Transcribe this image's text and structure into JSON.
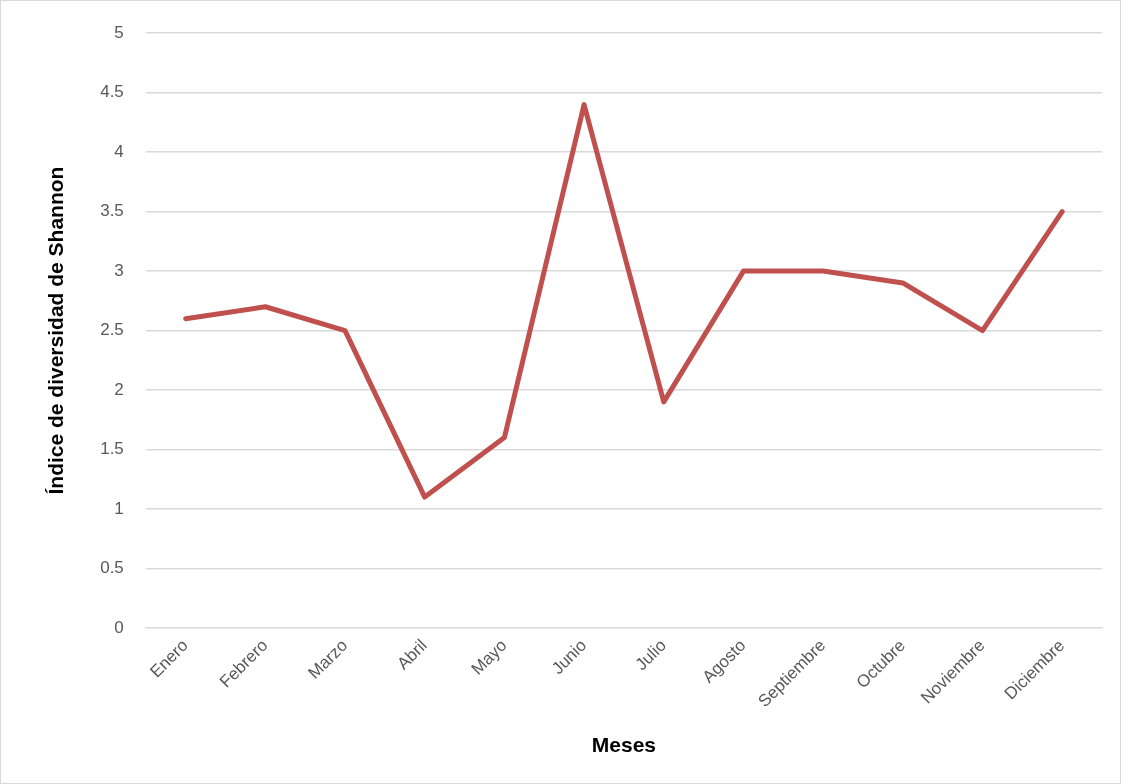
{
  "chart_data": {
    "type": "line",
    "xlabel": "Meses",
    "ylabel": "Índice de diversidad de Shannon",
    "categories": [
      "Enero",
      "Febrero",
      "Marzo",
      "Abril",
      "Mayo",
      "Junio",
      "Julio",
      "Agosto",
      "Septiembre",
      "Octubre",
      "Noviembre",
      "Diciembre"
    ],
    "series": [
      {
        "color": "#c0504d",
        "values": [
          2.6,
          2.7,
          2.5,
          1.1,
          1.6,
          4.4,
          1.9,
          3.0,
          3.0,
          2.9,
          2.5,
          3.5
        ]
      }
    ],
    "ylim": [
      0,
      5
    ],
    "yticks": [
      0,
      0.5,
      1,
      1.5,
      2,
      2.5,
      3,
      3.5,
      4,
      4.5,
      5
    ],
    "grid": "y",
    "legend": false,
    "marker": "none",
    "line_style": "solid"
  }
}
